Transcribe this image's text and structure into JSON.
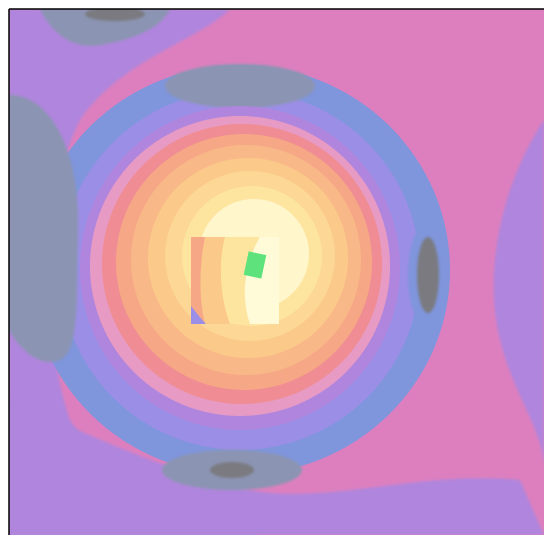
{
  "palette": {
    "background_pink": "#dd7fbe",
    "lavender": "#b085dd",
    "periwinkle": "#9b8ee6",
    "blue": "#7f95dc",
    "slate": "#8b94b2",
    "gray": "#7a7a80",
    "rose": "#e79bc4",
    "salmon": "#f08c93",
    "orange": "#f6a886",
    "peach": "#fbc989",
    "yellow": "#fde5a0",
    "cream": "#fff6cc",
    "inset_hot": "#fffad8",
    "marker_green": "#5ee37c",
    "frame": "#000000"
  },
  "legend": []
}
